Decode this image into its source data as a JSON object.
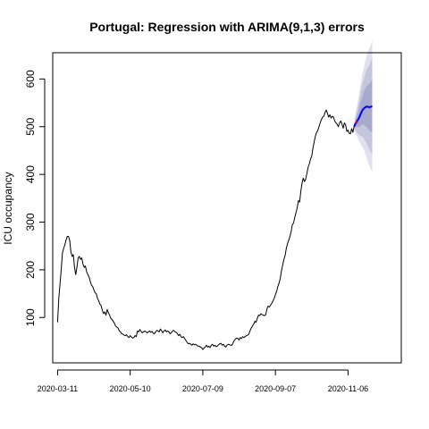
{
  "chart_data": {
    "type": "line",
    "title": "Portugal: Regression with ARIMA(9,1,3) errors",
    "xlabel": "",
    "ylabel": "ICU occupancy",
    "x_start": "2020-03-11",
    "x_range_days": [
      -4,
      284
    ],
    "ylim": [
      5,
      655
    ],
    "grid": false,
    "legend": "none",
    "yticks": [
      100,
      200,
      300,
      400,
      500,
      600
    ],
    "xticks": [
      {
        "day": 0,
        "label": "2020-03-11"
      },
      {
        "day": 60,
        "label": "2020-05-10"
      },
      {
        "day": 120,
        "label": "2020-07-09"
      },
      {
        "day": 180,
        "label": "2020-09-07"
      },
      {
        "day": 240,
        "label": "2020-11-06"
      }
    ],
    "colors": {
      "observed": "#000000",
      "forecast": "#0000ff",
      "fan_outer": "#e0e0ee",
      "fan_mid": "#c4c6dd",
      "fan_inner": "#a7aacd",
      "actual_marker": "#ff0000"
    },
    "series": [
      {
        "type": "observed",
        "points": [
          [
            0,
            90
          ],
          [
            1,
            140
          ],
          [
            2,
            170
          ],
          [
            3,
            200
          ],
          [
            4,
            235
          ],
          [
            5,
            245
          ],
          [
            6,
            252
          ],
          [
            7,
            262
          ],
          [
            8,
            270
          ],
          [
            9,
            270
          ],
          [
            10,
            262
          ],
          [
            11,
            238
          ],
          [
            12,
            228
          ],
          [
            13,
            232
          ],
          [
            14,
            205
          ],
          [
            15,
            190
          ],
          [
            16,
            205
          ],
          [
            17,
            225
          ],
          [
            18,
            228
          ],
          [
            19,
            222
          ],
          [
            20,
            225
          ],
          [
            21,
            212
          ],
          [
            22,
            205
          ],
          [
            23,
            208
          ],
          [
            24,
            196
          ],
          [
            25,
            190
          ],
          [
            26,
            185
          ],
          [
            27,
            176
          ],
          [
            28,
            168
          ],
          [
            29,
            165
          ],
          [
            30,
            158
          ],
          [
            31,
            152
          ],
          [
            32,
            150
          ],
          [
            33,
            140
          ],
          [
            34,
            135
          ],
          [
            35,
            128
          ],
          [
            36,
            125
          ],
          [
            37,
            115
          ],
          [
            38,
            108
          ],
          [
            39,
            112
          ],
          [
            40,
            105
          ],
          [
            41,
            117
          ],
          [
            42,
            110
          ],
          [
            43,
            105
          ],
          [
            44,
            98
          ],
          [
            45,
            96
          ],
          [
            46,
            92
          ],
          [
            47,
            88
          ],
          [
            48,
            82
          ],
          [
            49,
            80
          ],
          [
            50,
            78
          ],
          [
            51,
            72
          ],
          [
            52,
            70
          ],
          [
            53,
            66
          ],
          [
            54,
            65
          ],
          [
            55,
            63
          ],
          [
            56,
            62
          ],
          [
            57,
            64
          ],
          [
            58,
            60
          ],
          [
            59,
            58
          ],
          [
            60,
            62
          ],
          [
            61,
            59
          ],
          [
            62,
            57
          ],
          [
            63,
            58
          ],
          [
            64,
            62
          ],
          [
            65,
            60
          ],
          [
            66,
            72
          ],
          [
            67,
            70
          ],
          [
            68,
            75
          ],
          [
            69,
            71
          ],
          [
            70,
            68
          ],
          [
            71,
            70
          ],
          [
            72,
            72
          ],
          [
            73,
            70
          ],
          [
            74,
            68
          ],
          [
            75,
            70
          ],
          [
            76,
            72
          ],
          [
            77,
            69
          ],
          [
            78,
            71
          ],
          [
            79,
            67
          ],
          [
            80,
            66
          ],
          [
            81,
            70
          ],
          [
            82,
            73
          ],
          [
            83,
            72
          ],
          [
            84,
            70
          ],
          [
            85,
            76
          ],
          [
            86,
            72
          ],
          [
            87,
            68
          ],
          [
            88,
            72
          ],
          [
            89,
            74
          ],
          [
            90,
            70
          ],
          [
            91,
            72
          ],
          [
            92,
            70
          ],
          [
            93,
            66
          ],
          [
            94,
            68
          ],
          [
            95,
            72
          ],
          [
            96,
            73
          ],
          [
            97,
            70
          ],
          [
            98,
            69
          ],
          [
            99,
            66
          ],
          [
            100,
            62
          ],
          [
            101,
            65
          ],
          [
            102,
            60
          ],
          [
            103,
            58
          ],
          [
            104,
            60
          ],
          [
            105,
            56
          ],
          [
            106,
            52
          ],
          [
            107,
            48
          ],
          [
            108,
            45
          ],
          [
            109,
            46
          ],
          [
            110,
            44
          ],
          [
            111,
            42
          ],
          [
            112,
            45
          ],
          [
            113,
            43
          ],
          [
            114,
            44
          ],
          [
            115,
            42
          ],
          [
            116,
            40
          ],
          [
            117,
            40
          ],
          [
            118,
            38
          ],
          [
            119,
            37
          ],
          [
            120,
            33
          ],
          [
            121,
            36
          ],
          [
            122,
            38
          ],
          [
            123,
            42
          ],
          [
            124,
            38
          ],
          [
            125,
            40
          ],
          [
            126,
            37
          ],
          [
            127,
            42
          ],
          [
            128,
            44
          ],
          [
            129,
            40
          ],
          [
            130,
            42
          ],
          [
            131,
            39
          ],
          [
            132,
            40
          ],
          [
            133,
            43
          ],
          [
            134,
            45
          ],
          [
            135,
            46
          ],
          [
            136,
            42
          ],
          [
            137,
            44
          ],
          [
            138,
            40
          ],
          [
            139,
            38
          ],
          [
            140,
            42
          ],
          [
            141,
            44
          ],
          [
            142,
            43
          ],
          [
            143,
            42
          ],
          [
            144,
            42
          ],
          [
            145,
            47
          ],
          [
            146,
            52
          ],
          [
            147,
            55
          ],
          [
            148,
            57
          ],
          [
            149,
            56
          ],
          [
            150,
            53
          ],
          [
            151,
            58
          ],
          [
            152,
            56
          ],
          [
            153,
            60
          ],
          [
            154,
            58
          ],
          [
            155,
            60
          ],
          [
            156,
            62
          ],
          [
            157,
            63
          ],
          [
            158,
            65
          ],
          [
            159,
            72
          ],
          [
            160,
            78
          ],
          [
            161,
            82
          ],
          [
            162,
            86
          ],
          [
            163,
            92
          ],
          [
            164,
            90
          ],
          [
            165,
            98
          ],
          [
            166,
            105
          ],
          [
            167,
            104
          ],
          [
            168,
            108
          ],
          [
            169,
            106
          ],
          [
            170,
            105
          ],
          [
            171,
            104
          ],
          [
            172,
            106
          ],
          [
            173,
            118
          ],
          [
            174,
            124
          ],
          [
            175,
            122
          ],
          [
            176,
            126
          ],
          [
            177,
            130
          ],
          [
            178,
            135
          ],
          [
            179,
            140
          ],
          [
            180,
            148
          ],
          [
            181,
            155
          ],
          [
            182,
            165
          ],
          [
            183,
            172
          ],
          [
            184,
            182
          ],
          [
            185,
            198
          ],
          [
            186,
            210
          ],
          [
            187,
            222
          ],
          [
            188,
            230
          ],
          [
            189,
            245
          ],
          [
            190,
            255
          ],
          [
            191,
            262
          ],
          [
            192,
            270
          ],
          [
            193,
            280
          ],
          [
            194,
            295
          ],
          [
            195,
            298
          ],
          [
            196,
            310
          ],
          [
            197,
            320
          ],
          [
            198,
            330
          ],
          [
            199,
            345
          ],
          [
            200,
            342
          ],
          [
            201,
            365
          ],
          [
            202,
            382
          ],
          [
            203,
            392
          ],
          [
            204,
            385
          ],
          [
            205,
            390
          ],
          [
            206,
            402
          ],
          [
            207,
            415
          ],
          [
            208,
            422
          ],
          [
            209,
            432
          ],
          [
            210,
            438
          ],
          [
            211,
            455
          ],
          [
            212,
            468
          ],
          [
            213,
            480
          ],
          [
            214,
            488
          ],
          [
            215,
            492
          ],
          [
            216,
            500
          ],
          [
            217,
            508
          ],
          [
            218,
            515
          ],
          [
            219,
            520
          ],
          [
            220,
            522
          ],
          [
            221,
            530
          ],
          [
            222,
            535
          ],
          [
            223,
            528
          ],
          [
            224,
            520
          ],
          [
            225,
            525
          ],
          [
            226,
            518
          ],
          [
            227,
            522
          ],
          [
            228,
            520
          ],
          [
            229,
            512
          ],
          [
            230,
            508
          ],
          [
            231,
            505
          ],
          [
            232,
            500
          ],
          [
            233,
            508
          ],
          [
            234,
            512
          ],
          [
            235,
            505
          ],
          [
            236,
            497
          ],
          [
            237,
            508
          ],
          [
            238,
            504
          ],
          [
            239,
            490
          ],
          [
            240,
            493
          ],
          [
            241,
            486
          ],
          [
            242,
            485
          ],
          [
            243,
            496
          ],
          [
            244,
            488
          ],
          [
            245,
            500
          ]
        ]
      },
      {
        "type": "forecast",
        "points": [
          [
            245,
            500
          ],
          [
            246,
            506
          ],
          [
            247,
            510
          ],
          [
            248,
            514
          ],
          [
            249,
            518
          ],
          [
            250,
            524
          ],
          [
            251,
            530
          ],
          [
            252,
            535
          ],
          [
            253,
            538
          ],
          [
            254,
            540
          ],
          [
            255,
            542
          ],
          [
            256,
            542
          ],
          [
            257,
            541
          ],
          [
            258,
            541
          ],
          [
            259,
            542
          ],
          [
            260,
            543
          ]
        ],
        "band_80": [
          [
            498,
            502
          ],
          [
            499,
            513
          ],
          [
            500,
            520
          ],
          [
            500,
            528
          ],
          [
            500,
            536
          ],
          [
            501,
            547
          ],
          [
            503,
            557
          ],
          [
            505,
            565
          ],
          [
            504,
            572
          ],
          [
            502,
            578
          ],
          [
            500,
            584
          ],
          [
            497,
            587
          ],
          [
            494,
            588
          ],
          [
            491,
            591
          ],
          [
            489,
            595
          ],
          [
            487,
            599
          ]
        ],
        "band_95": [
          [
            497,
            503
          ],
          [
            492,
            520
          ],
          [
            489,
            531
          ],
          [
            486,
            542
          ],
          [
            483,
            553
          ],
          [
            481,
            567
          ],
          [
            480,
            580
          ],
          [
            479,
            591
          ],
          [
            476,
            600
          ],
          [
            471,
            609
          ],
          [
            467,
            617
          ],
          [
            461,
            623
          ],
          [
            455,
            627
          ],
          [
            450,
            632
          ],
          [
            446,
            638
          ],
          [
            442,
            644
          ]
        ],
        "band_outer": [
          [
            496,
            504
          ],
          [
            487,
            525
          ],
          [
            482,
            538
          ],
          [
            476,
            552
          ],
          [
            470,
            566
          ],
          [
            465,
            583
          ],
          [
            461,
            599
          ],
          [
            457,
            613
          ],
          [
            452,
            624
          ],
          [
            445,
            635
          ],
          [
            438,
            646
          ],
          [
            430,
            654
          ],
          [
            422,
            660
          ],
          [
            416,
            666
          ],
          [
            410,
            674
          ],
          [
            404,
            682
          ]
        ]
      },
      {
        "type": "actual_marker",
        "points": [
          [
            246,
            507
          ],
          [
            247,
            512
          ],
          [
            248,
            508
          ]
        ]
      }
    ]
  }
}
